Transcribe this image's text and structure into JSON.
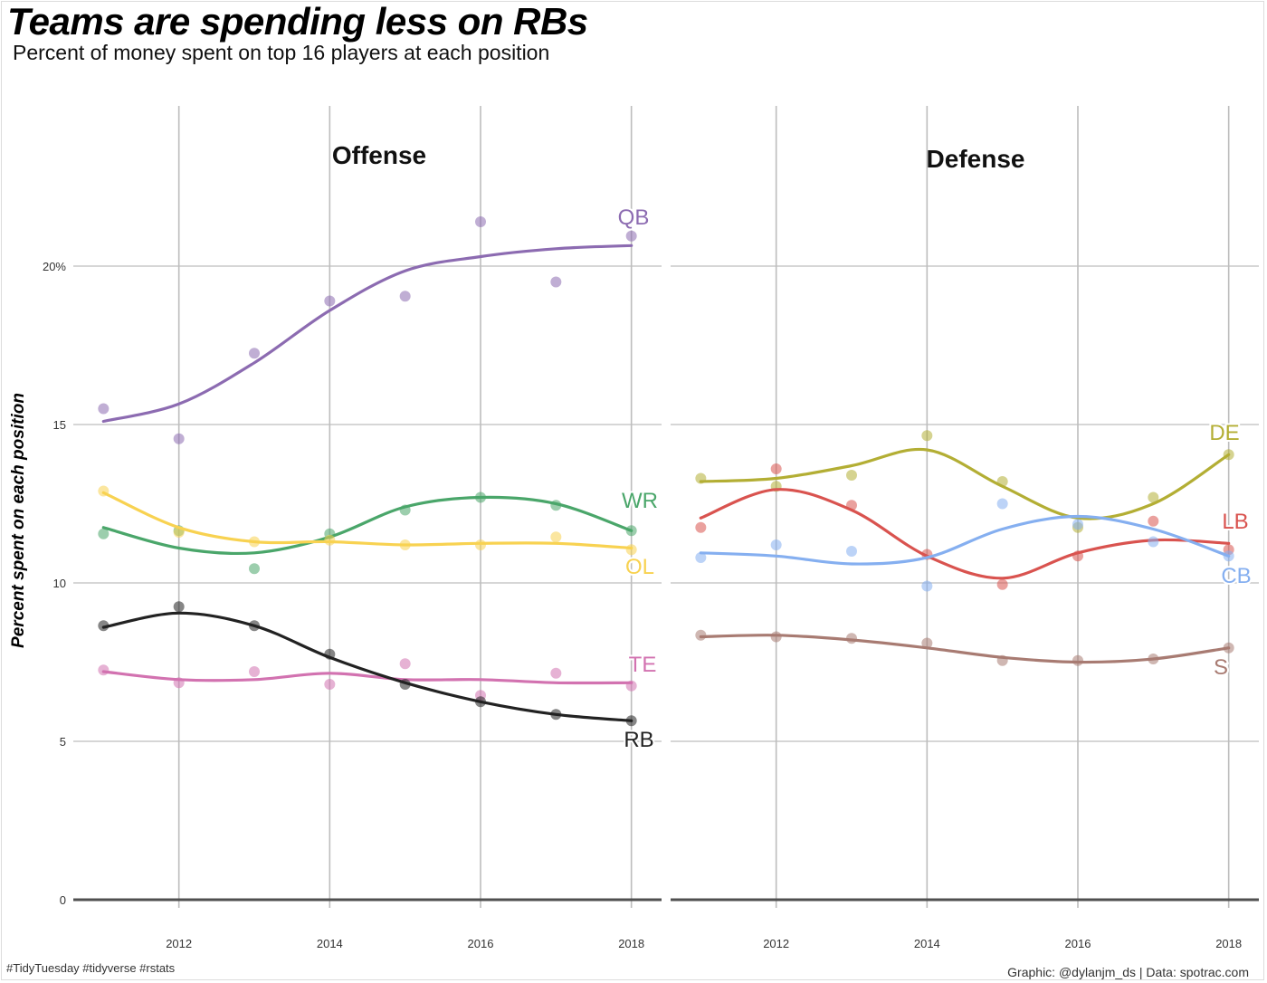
{
  "title": "Teams are spending less on RBs",
  "subtitle": "Percent of money spent on top 16 players at each position",
  "caption_left": "#TidyTuesday #tidyverse #rstats",
  "caption_right": "Graphic: @dylanjm_ds | Data: spotrac.com",
  "chart_data": {
    "type": "scatter",
    "ylabel": "Percent spent on each position",
    "xlim": [
      2010.6,
      2018.4
    ],
    "ylim": [
      0,
      23
    ],
    "x_ticks": [
      2012,
      2014,
      2016,
      2018
    ],
    "y_ticks": [
      {
        "value": 0,
        "label": "0"
      },
      {
        "value": 5,
        "label": "5"
      },
      {
        "value": 10,
        "label": "10"
      },
      {
        "value": 15,
        "label": "15"
      },
      {
        "value": 20,
        "label": "20%"
      }
    ],
    "years": [
      2011,
      2012,
      2013,
      2014,
      2015,
      2016,
      2017,
      2018
    ],
    "panels": [
      {
        "title": "Offense",
        "series": [
          {
            "name": "QB",
            "color": "#8c6bb1",
            "values": [
              15.5,
              14.55,
              17.25,
              18.9,
              19.05,
              21.4,
              19.5,
              20.95
            ],
            "smooth": [
              15.1,
              15.65,
              16.95,
              18.6,
              19.85,
              20.3,
              20.55,
              20.65
            ]
          },
          {
            "name": "WR",
            "color": "#4aa66a",
            "values": [
              11.55,
              11.65,
              10.45,
              11.55,
              12.3,
              12.7,
              12.45,
              11.65
            ],
            "smooth": [
              11.75,
              11.1,
              10.95,
              11.45,
              12.4,
              12.7,
              12.5,
              11.65
            ]
          },
          {
            "name": "OL",
            "color": "#f8d251",
            "values": [
              12.9,
              11.6,
              11.3,
              11.35,
              11.2,
              11.2,
              11.45,
              11.05
            ],
            "smooth": [
              12.85,
              11.75,
              11.3,
              11.3,
              11.2,
              11.25,
              11.25,
              11.1
            ]
          },
          {
            "name": "TE",
            "color": "#d272b0",
            "values": [
              7.25,
              6.85,
              7.2,
              6.8,
              7.45,
              6.45,
              7.15,
              6.75
            ],
            "smooth": [
              7.2,
              6.95,
              6.95,
              7.15,
              6.95,
              6.95,
              6.85,
              6.85
            ]
          },
          {
            "name": "RB",
            "color": "#222222",
            "values": [
              8.65,
              9.25,
              8.65,
              7.75,
              6.8,
              6.25,
              5.85,
              5.65
            ],
            "smooth": [
              8.6,
              9.05,
              8.65,
              7.65,
              6.85,
              6.25,
              5.85,
              5.65
            ]
          }
        ]
      },
      {
        "title": "Defense",
        "series": [
          {
            "name": "DE",
            "color": "#b3ae34",
            "values": [
              13.3,
              13.05,
              13.4,
              14.65,
              13.2,
              11.75,
              12.7,
              14.05
            ],
            "smooth": [
              13.2,
              13.3,
              13.7,
              14.2,
              13.05,
              12.05,
              12.5,
              14.05
            ]
          },
          {
            "name": "LB",
            "color": "#d9534f",
            "values": [
              11.75,
              13.6,
              12.45,
              10.9,
              9.95,
              10.85,
              11.95,
              11.05
            ],
            "smooth": [
              12.05,
              12.95,
              12.3,
              10.85,
              10.15,
              10.95,
              11.35,
              11.25
            ]
          },
          {
            "name": "CB",
            "color": "#85aff0",
            "values": [
              10.8,
              11.2,
              11.0,
              9.9,
              12.5,
              11.85,
              11.3,
              10.85
            ],
            "smooth": [
              10.95,
              10.85,
              10.6,
              10.8,
              11.7,
              12.1,
              11.7,
              10.85
            ]
          },
          {
            "name": "S",
            "color": "#a87b72",
            "values": [
              8.35,
              8.3,
              8.25,
              8.1,
              7.55,
              7.55,
              7.6,
              7.95
            ],
            "smooth": [
              8.3,
              8.35,
              8.2,
              7.95,
              7.65,
              7.5,
              7.6,
              7.95
            ]
          }
        ]
      }
    ]
  }
}
